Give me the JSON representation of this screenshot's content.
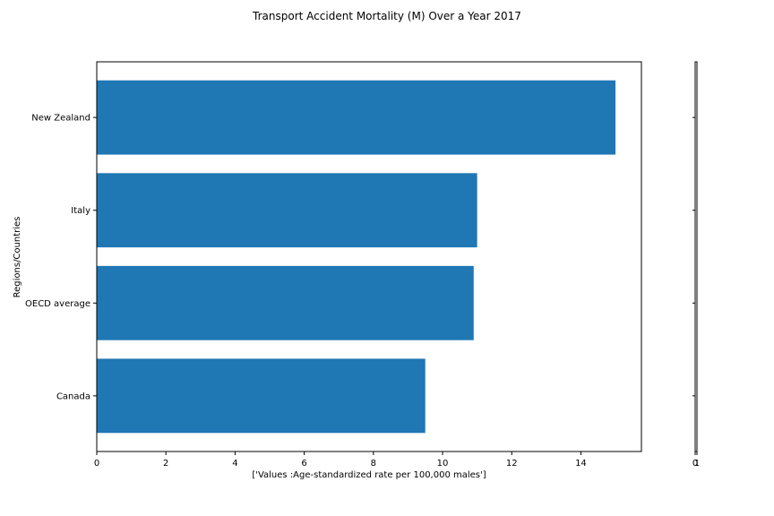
{
  "chart_data": {
    "type": "bar",
    "orientation": "horizontal",
    "title": "Transport Accident Mortality (M) Over a Year 2017",
    "xlabel": "['Values :Age-standardized rate per 100,000 males']",
    "ylabel": "Regions/Countries",
    "categories": [
      "Canada",
      "OECD average",
      "Italy",
      "New Zealand"
    ],
    "values": [
      9.5,
      10.9,
      11.0,
      15.0
    ],
    "xlim": [
      0,
      15.75
    ],
    "xticks": [
      0,
      2,
      4,
      6,
      8,
      10,
      12,
      14
    ],
    "bar_color": "#1f77b4",
    "grid": false,
    "legend": "none",
    "secondary_axis": {
      "ticks": [
        "0",
        "1"
      ]
    }
  }
}
